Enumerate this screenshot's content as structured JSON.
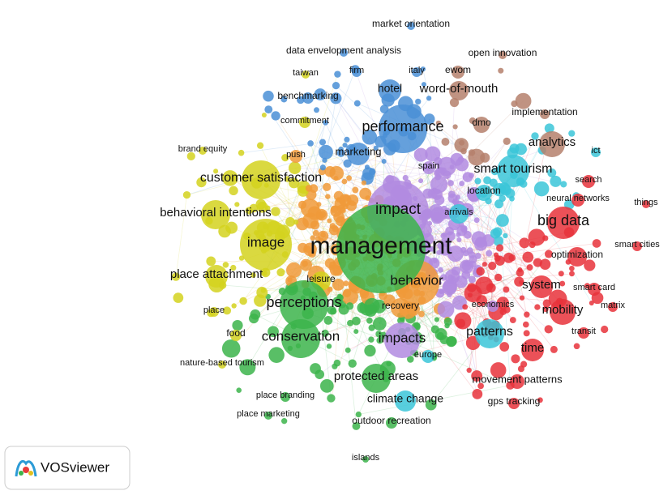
{
  "nodes": [
    {
      "label": "market orientation"
    },
    {
      "label": "data envelopment analysis"
    },
    {
      "label": "open innovation"
    },
    {
      "label": "taiwan"
    },
    {
      "label": "firm"
    },
    {
      "label": "italy"
    },
    {
      "label": "ewom"
    },
    {
      "label": "hotel"
    },
    {
      "label": "word-of-mouth"
    },
    {
      "label": "benchmarking"
    },
    {
      "label": "implementation"
    },
    {
      "label": "commitment"
    },
    {
      "label": "performance"
    },
    {
      "label": "dmo"
    },
    {
      "label": "analytics"
    },
    {
      "label": "ict"
    },
    {
      "label": "brand equity"
    },
    {
      "label": "push"
    },
    {
      "label": "marketing"
    },
    {
      "label": "spain"
    },
    {
      "label": "smart tourism"
    },
    {
      "label": "search"
    },
    {
      "label": "customer satisfaction"
    },
    {
      "label": "location"
    },
    {
      "label": "neural networks"
    },
    {
      "label": "things"
    },
    {
      "label": "impact"
    },
    {
      "label": "arrivals"
    },
    {
      "label": "behavioral intentions"
    },
    {
      "label": "big data"
    },
    {
      "label": "image"
    },
    {
      "label": "management"
    },
    {
      "label": "smart cities"
    },
    {
      "label": "optimization"
    },
    {
      "label": "place attachment"
    },
    {
      "label": "behavior"
    },
    {
      "label": "leisure"
    },
    {
      "label": "system"
    },
    {
      "label": "smart card"
    },
    {
      "label": "perceptions"
    },
    {
      "label": "recovery"
    },
    {
      "label": "economics"
    },
    {
      "label": "matrix"
    },
    {
      "label": "mobility"
    },
    {
      "label": "place"
    },
    {
      "label": "food"
    },
    {
      "label": "conservation"
    },
    {
      "label": "patterns"
    },
    {
      "label": "impacts"
    },
    {
      "label": "transit"
    },
    {
      "label": "time"
    },
    {
      "label": "europe"
    },
    {
      "label": "nature-based tourism"
    },
    {
      "label": "protected areas"
    },
    {
      "label": "movement patterns"
    },
    {
      "label": "place branding"
    },
    {
      "label": "climate change"
    },
    {
      "label": "gps tracking"
    },
    {
      "label": "place marketing"
    },
    {
      "label": "outdoor recreation"
    },
    {
      "label": "islands"
    }
  ],
  "logo": {
    "text": "VOSviewer"
  }
}
